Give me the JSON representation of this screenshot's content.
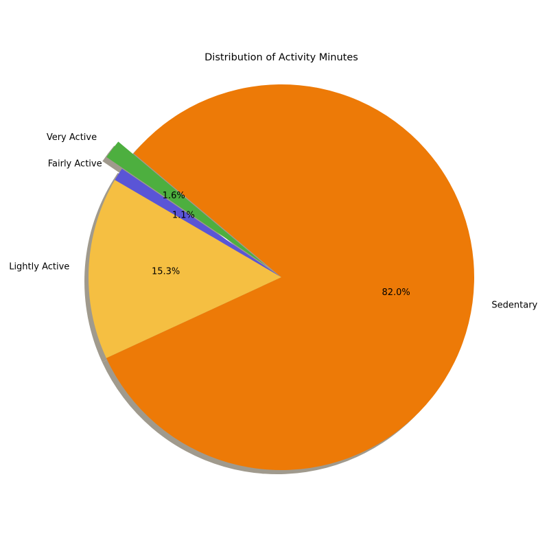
{
  "chart_data": {
    "type": "pie",
    "title": "Distribution of Activity Minutes",
    "categories": [
      "Very Active",
      "Fairly Active",
      "Lightly Active",
      "Sedentary"
    ],
    "values": [
      1.6,
      1.1,
      15.3,
      82.0
    ],
    "percent_labels": [
      "1.6%",
      "1.1%",
      "15.3%",
      "82.0%"
    ],
    "colors": [
      "#4daf3f",
      "#5a55d6",
      "#f5bf42",
      "#ed7a07"
    ],
    "explode": [
      0.1,
      0,
      0,
      0
    ],
    "start_angle_deg": 140,
    "shadow": true,
    "shadow_color": "#a09a8d"
  }
}
